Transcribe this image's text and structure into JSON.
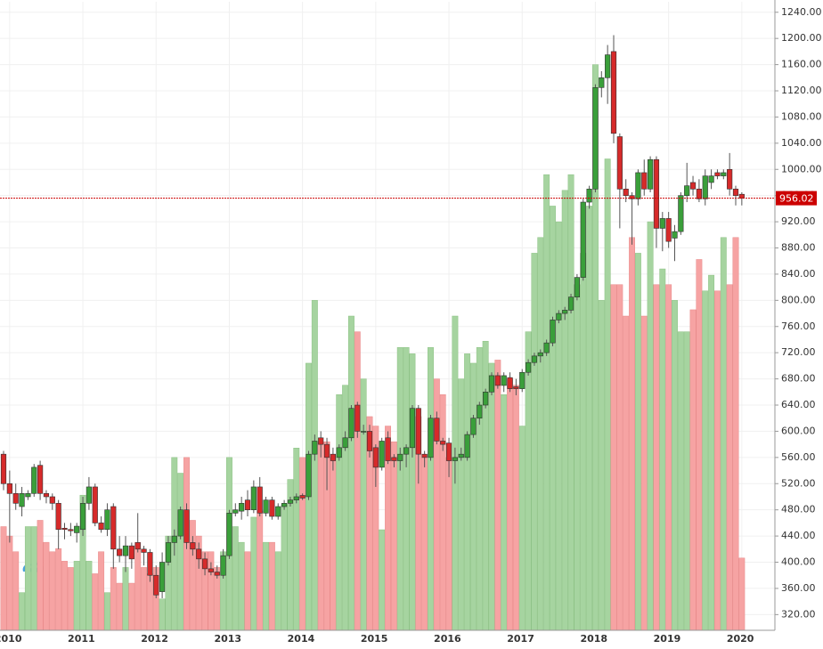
{
  "chart_data": {
    "type": "candlestick",
    "categories": [
      null,
      "2010",
      null,
      null,
      null,
      null,
      null,
      null,
      null,
      null,
      null,
      null,
      null,
      "2011",
      null,
      null,
      null,
      null,
      null,
      null,
      null,
      null,
      null,
      null,
      null,
      "2012",
      null,
      null,
      null,
      null,
      null,
      null,
      null,
      null,
      null,
      null,
      null,
      "2013",
      null,
      null,
      null,
      null,
      null,
      null,
      null,
      null,
      null,
      null,
      null,
      "2014",
      null,
      null,
      null,
      null,
      null,
      null,
      null,
      null,
      null,
      null,
      null,
      "2015",
      null,
      null,
      null,
      null,
      null,
      null,
      null,
      null,
      null,
      null,
      null,
      "2016",
      null,
      null,
      null,
      null,
      null,
      null,
      null,
      null,
      null,
      null,
      null,
      "2017",
      null,
      null,
      null,
      null,
      null,
      null,
      null,
      null,
      null,
      null,
      null,
      "2018",
      null,
      null,
      null,
      null,
      null,
      null,
      null,
      null,
      null,
      null,
      null,
      "2019",
      null,
      null,
      null,
      null,
      null,
      null,
      null,
      null,
      null,
      null,
      null,
      "2020"
    ],
    "open": [
      565,
      520,
      505,
      485,
      500,
      505,
      548,
      505,
      500,
      490,
      452,
      450,
      445,
      450,
      490,
      515,
      460,
      450,
      485,
      420,
      410,
      425,
      430,
      420,
      415,
      380,
      355,
      400,
      430,
      440,
      480,
      430,
      420,
      405,
      390,
      385,
      380,
      410,
      475,
      478,
      495,
      480,
      515,
      475,
      495,
      470,
      485,
      490,
      495,
      502,
      500,
      565,
      590,
      580,
      565,
      560,
      575,
      590,
      640,
      600,
      600,
      575,
      545,
      590,
      560,
      555,
      565,
      575,
      635,
      565,
      560,
      620,
      585,
      582,
      555,
      560,
      560,
      595,
      620,
      640,
      660,
      685,
      670,
      682,
      668,
      665,
      690,
      705,
      715,
      720,
      735,
      770,
      780,
      785,
      805,
      835,
      950,
      970,
      1125,
      1140,
      1180,
      1050,
      970,
      960,
      955,
      995,
      970,
      1015,
      910,
      925,
      895,
      905,
      960,
      980,
      970,
      955,
      980,
      995,
      990,
      1000,
      970,
      962
    ],
    "high": [
      570,
      540,
      520,
      515,
      510,
      550,
      555,
      510,
      505,
      495,
      460,
      460,
      460,
      500,
      530,
      520,
      470,
      490,
      490,
      440,
      440,
      430,
      475,
      425,
      420,
      395,
      415,
      440,
      450,
      485,
      490,
      440,
      430,
      415,
      400,
      395,
      420,
      480,
      490,
      500,
      510,
      525,
      530,
      500,
      500,
      490,
      495,
      500,
      505,
      505,
      570,
      595,
      600,
      590,
      575,
      580,
      600,
      640,
      645,
      610,
      610,
      580,
      590,
      600,
      565,
      575,
      580,
      640,
      640,
      570,
      625,
      630,
      590,
      590,
      575,
      575,
      600,
      625,
      645,
      665,
      690,
      690,
      690,
      690,
      680,
      695,
      710,
      720,
      725,
      740,
      775,
      785,
      790,
      810,
      840,
      955,
      975,
      1130,
      1150,
      1190,
      1205,
      1055,
      985,
      965,
      1000,
      1015,
      1020,
      1020,
      935,
      935,
      915,
      965,
      1010,
      990,
      985,
      1000,
      1000,
      1000,
      1000,
      1025,
      975,
      965
    ],
    "low": [
      510,
      430,
      480,
      470,
      495,
      500,
      495,
      490,
      480,
      420,
      435,
      440,
      430,
      440,
      480,
      455,
      445,
      440,
      390,
      400,
      385,
      390,
      415,
      395,
      370,
      345,
      345,
      395,
      410,
      435,
      420,
      410,
      390,
      380,
      380,
      375,
      375,
      405,
      470,
      465,
      470,
      475,
      470,
      470,
      465,
      465,
      480,
      485,
      490,
      495,
      495,
      555,
      560,
      510,
      540,
      555,
      570,
      585,
      590,
      595,
      560,
      515,
      540,
      550,
      545,
      540,
      545,
      560,
      520,
      545,
      555,
      580,
      570,
      530,
      520,
      555,
      555,
      590,
      610,
      635,
      655,
      665,
      660,
      660,
      655,
      660,
      685,
      700,
      705,
      715,
      730,
      765,
      770,
      780,
      800,
      830,
      940,
      965,
      1110,
      1100,
      1040,
      910,
      950,
      885,
      945,
      960,
      965,
      880,
      875,
      880,
      860,
      900,
      950,
      960,
      950,
      945,
      970,
      985,
      985,
      960,
      945,
      945
    ],
    "close": [
      520,
      505,
      490,
      505,
      505,
      545,
      505,
      500,
      490,
      450,
      450,
      448,
      455,
      490,
      515,
      460,
      450,
      480,
      420,
      410,
      425,
      405,
      420,
      415,
      380,
      350,
      400,
      430,
      440,
      480,
      430,
      420,
      405,
      390,
      385,
      380,
      410,
      475,
      480,
      490,
      480,
      515,
      475,
      495,
      470,
      485,
      490,
      495,
      500,
      498,
      565,
      585,
      580,
      560,
      555,
      575,
      590,
      635,
      600,
      600,
      570,
      545,
      585,
      555,
      555,
      565,
      575,
      635,
      565,
      560,
      620,
      585,
      580,
      555,
      560,
      565,
      595,
      620,
      640,
      660,
      685,
      670,
      685,
      665,
      665,
      690,
      705,
      715,
      720,
      735,
      770,
      780,
      785,
      805,
      835,
      950,
      970,
      1125,
      1140,
      1175,
      1055,
      970,
      960,
      955,
      995,
      970,
      1015,
      910,
      925,
      890,
      905,
      960,
      975,
      970,
      955,
      990,
      990,
      990,
      995,
      970,
      960,
      956.02
    ],
    "volume": [
      33,
      30,
      25,
      12,
      33,
      33,
      35,
      28,
      25,
      26,
      22,
      20,
      22,
      43,
      22,
      18,
      25,
      12,
      20,
      15,
      20,
      15,
      28,
      20,
      18,
      20,
      10,
      30,
      55,
      50,
      55,
      35,
      30,
      25,
      25,
      20,
      25,
      55,
      33,
      28,
      25,
      36,
      38,
      28,
      28,
      25,
      40,
      48,
      58,
      55,
      85,
      105,
      60,
      60,
      55,
      75,
      78,
      100,
      95,
      80,
      68,
      65,
      32,
      65,
      60,
      90,
      90,
      88,
      68,
      55,
      90,
      80,
      75,
      55,
      100,
      80,
      88,
      85,
      90,
      92,
      85,
      86,
      75,
      80,
      78,
      65,
      95,
      120,
      125,
      145,
      135,
      130,
      140,
      145,
      110,
      120,
      135,
      180,
      105,
      150,
      110,
      110,
      100,
      125,
      120,
      100,
      130,
      110,
      115,
      110,
      105,
      95,
      95,
      102,
      118,
      108,
      113,
      108,
      125,
      110,
      125,
      23
    ],
    "up_color": "#3a9f3a",
    "down_color": "#d62a2a",
    "up_volume_color": "#a6d4a0",
    "down_volume_color": "#f6a3a3",
    "ylim": [
      296,
      1256
    ],
    "yticks": [
      {
        "value": 320,
        "label": "320.00"
      },
      {
        "value": 360,
        "label": "360.00"
      },
      {
        "value": 400,
        "label": "400.00"
      },
      {
        "value": 440,
        "label": "440.00"
      },
      {
        "value": 480,
        "label": "480.00"
      },
      {
        "value": 520,
        "label": "520.00"
      },
      {
        "value": 560,
        "label": "560.00"
      },
      {
        "value": 600,
        "label": "600.00"
      },
      {
        "value": 640,
        "label": "640.00"
      },
      {
        "value": 680,
        "label": "680.00"
      },
      {
        "value": 720,
        "label": "720.00"
      },
      {
        "value": 760,
        "label": "760.00"
      },
      {
        "value": 800,
        "label": "800.00"
      },
      {
        "value": 840,
        "label": "840.00"
      },
      {
        "value": 880,
        "label": "880.00"
      },
      {
        "value": 920,
        "label": "920.00"
      },
      {
        "value": 960,
        "label": "960.00"
      },
      {
        "value": 1000,
        "label": "1000.00"
      },
      {
        "value": 1040,
        "label": "1040.00"
      },
      {
        "value": 1080,
        "label": "1080.00"
      },
      {
        "value": 1120,
        "label": "1120.00"
      },
      {
        "value": 1160,
        "label": "1160.00"
      },
      {
        "value": 1200,
        "label": "1200.00"
      },
      {
        "value": 1240,
        "label": "1240.00"
      }
    ],
    "volume_lim": [
      0,
      200
    ],
    "last_price": {
      "value": 956.02,
      "label": "956.02",
      "color": "#cc0000"
    },
    "grid": true
  }
}
